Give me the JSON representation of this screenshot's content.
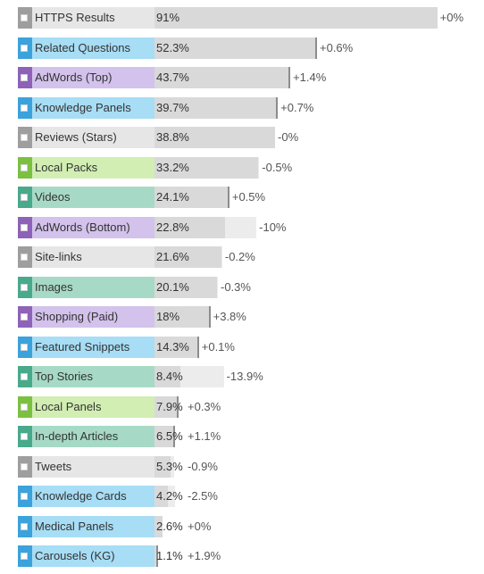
{
  "colors": {
    "gray": "#9e9e9e",
    "grayLight": "#e6e6e6",
    "blue": "#3ba2db",
    "blueLight": "#a7ddf5",
    "purple": "#8e62b8",
    "purpleLight": "#d3c2ec",
    "green": "#7cc041",
    "greenLight": "#d2eeb3",
    "teal": "#48a98b",
    "tealLight": "#a7dac6",
    "bar": "#d9d9d9",
    "barExt": "#ececec",
    "tick": "#8c8c8c"
  },
  "chart_data": {
    "type": "bar",
    "xlim": [
      0,
      100
    ],
    "rows": [
      {
        "label": "HTTPS Results",
        "value": 91,
        "value_text": "91%",
        "change": 0,
        "change_text": "+0%",
        "color": "gray"
      },
      {
        "label": "Related Questions",
        "value": 52.3,
        "value_text": "52.3%",
        "change": 0.6,
        "change_text": "+0.6%",
        "color": "blue"
      },
      {
        "label": "AdWords (Top)",
        "value": 43.7,
        "value_text": "43.7%",
        "change": 1.4,
        "change_text": "+1.4%",
        "color": "purple"
      },
      {
        "label": "Knowledge Panels",
        "value": 39.7,
        "value_text": "39.7%",
        "change": 0.7,
        "change_text": "+0.7%",
        "color": "blue"
      },
      {
        "label": "Reviews (Stars)",
        "value": 38.8,
        "value_text": "38.8%",
        "change": 0,
        "change_text": "-0%",
        "color": "gray"
      },
      {
        "label": "Local Packs",
        "value": 33.2,
        "value_text": "33.2%",
        "change": -0.5,
        "change_text": "-0.5%",
        "color": "green"
      },
      {
        "label": "Videos",
        "value": 24.1,
        "value_text": "24.1%",
        "change": 0.5,
        "change_text": "+0.5%",
        "color": "teal"
      },
      {
        "label": "AdWords (Bottom)",
        "value": 22.8,
        "value_text": "22.8%",
        "change": -10,
        "change_text": "-10%",
        "color": "purple"
      },
      {
        "label": "Site-links",
        "value": 21.6,
        "value_text": "21.6%",
        "change": -0.2,
        "change_text": "-0.2%",
        "color": "gray"
      },
      {
        "label": "Images",
        "value": 20.1,
        "value_text": "20.1%",
        "change": -0.3,
        "change_text": "-0.3%",
        "color": "teal"
      },
      {
        "label": "Shopping (Paid)",
        "value": 18,
        "value_text": "18%",
        "change": 3.8,
        "change_text": "+3.8%",
        "color": "purple"
      },
      {
        "label": "Featured Snippets",
        "value": 14.3,
        "value_text": "14.3%",
        "change": 0.1,
        "change_text": "+0.1%",
        "color": "blue"
      },
      {
        "label": "Top Stories",
        "value": 8.4,
        "value_text": "8.4%",
        "change": -13.9,
        "change_text": "-13.9%",
        "color": "teal"
      },
      {
        "label": "Local Panels",
        "value": 7.9,
        "value_text": "7.9%",
        "change": 0.3,
        "change_text": "+0.3%",
        "color": "green"
      },
      {
        "label": "In-depth Articles",
        "value": 6.5,
        "value_text": "6.5%",
        "change": 1.1,
        "change_text": "+1.1%",
        "color": "teal"
      },
      {
        "label": "Tweets",
        "value": 5.3,
        "value_text": "5.3%",
        "change": -0.9,
        "change_text": "-0.9%",
        "color": "gray"
      },
      {
        "label": "Knowledge Cards",
        "value": 4.2,
        "value_text": "4.2%",
        "change": -2.5,
        "change_text": "-2.5%",
        "color": "blue"
      },
      {
        "label": "Medical Panels",
        "value": 2.6,
        "value_text": "2.6%",
        "change": 0,
        "change_text": "+0%",
        "color": "blue"
      },
      {
        "label": "Carousels (KG)",
        "value": 1.1,
        "value_text": "1.1%",
        "change": 1.9,
        "change_text": "+1.9%",
        "color": "blue"
      }
    ]
  }
}
